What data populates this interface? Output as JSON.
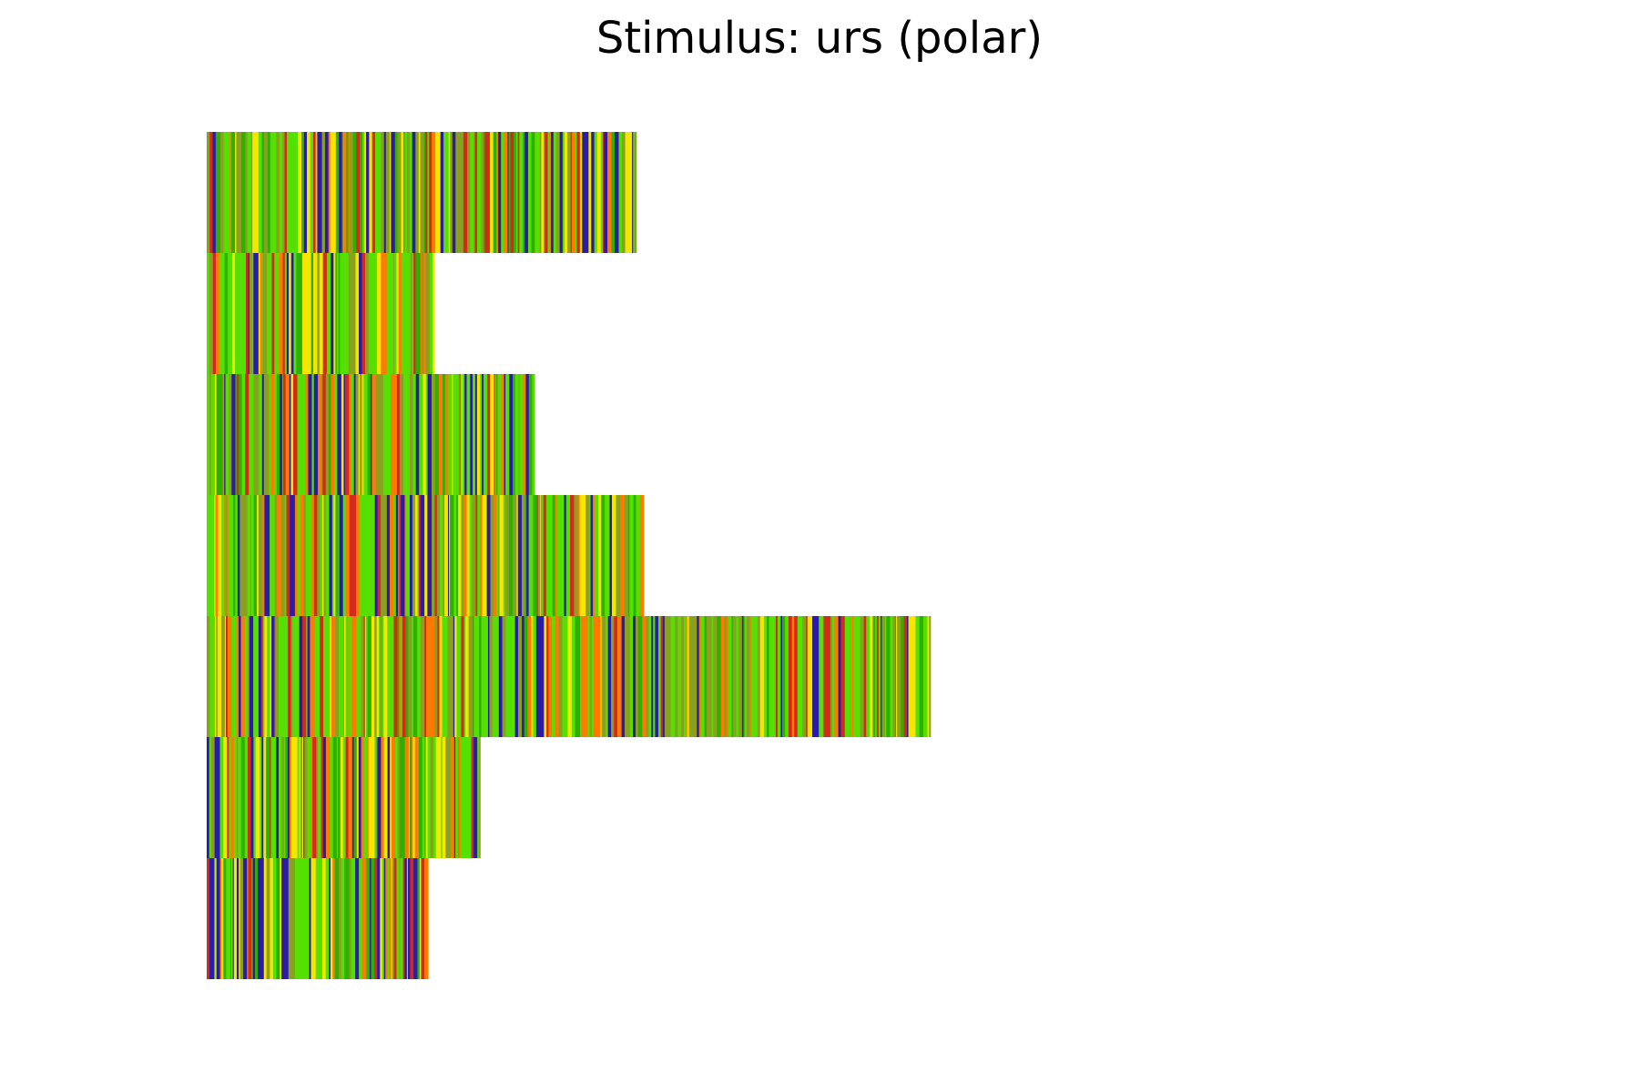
{
  "chart_data": {
    "type": "heatmap",
    "title": "Stimulus: urs (polar)",
    "xlabel": "",
    "ylabel": "",
    "axes_visible": false,
    "grid": false,
    "colormap": [
      "#2b1ca6",
      "#d42a1c",
      "#ff7a00",
      "#f5e600",
      "#55e000",
      "#2fb000",
      "#8aa020"
    ],
    "rows": [
      {
        "index": 0,
        "length": 355
      },
      {
        "index": 1,
        "length": 188
      },
      {
        "index": 2,
        "length": 271
      },
      {
        "index": 3,
        "length": 361
      },
      {
        "index": 4,
        "length": 598
      },
      {
        "index": 5,
        "length": 226
      },
      {
        "index": 6,
        "length": 183
      }
    ],
    "xlim": [
      0,
      1180
    ],
    "ylim": [
      0,
      7
    ]
  }
}
